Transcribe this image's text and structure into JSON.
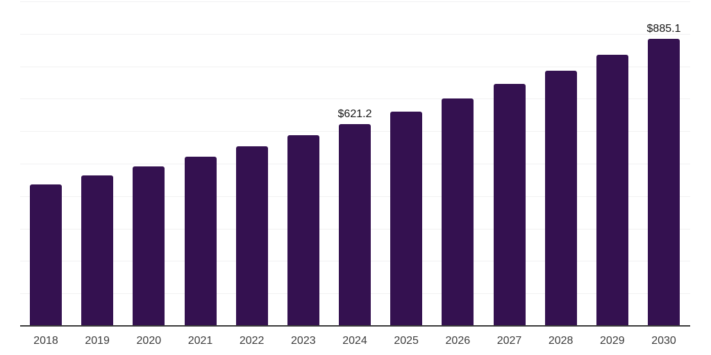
{
  "chart_data": {
    "type": "bar",
    "categories": [
      "2018",
      "2019",
      "2020",
      "2021",
      "2022",
      "2023",
      "2024",
      "2025",
      "2026",
      "2027",
      "2028",
      "2029",
      "2030"
    ],
    "values": [
      436.2,
      463.8,
      491.5,
      521.3,
      553.2,
      587.2,
      621.2,
      659.6,
      700.1,
      744.7,
      787.2,
      836.2,
      885.1
    ],
    "annotations": [
      {
        "category": "2024",
        "text": "$621.2"
      },
      {
        "category": "2030",
        "text": "$885.1"
      }
    ],
    "ylim": [
      0,
      1000
    ],
    "grid_step": 100,
    "grid": "horizontal",
    "legend": "none",
    "colors": {
      "bar": "#341150",
      "gridline": "#F1F1F2",
      "axis_line": "#3A3A3A",
      "tick_label": "#3C3C3C",
      "data_label": "#141414",
      "background": "#FFFFFF"
    }
  }
}
